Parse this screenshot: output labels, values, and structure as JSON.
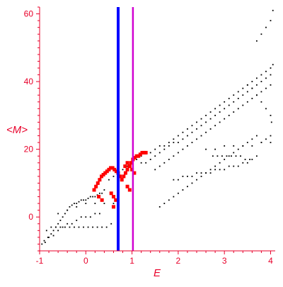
{
  "chart_data": {
    "type": "scatter",
    "xlabel": "E",
    "ylabel": "<M>",
    "xlim": [
      -1,
      4.1
    ],
    "ylim": [
      -10,
      62
    ],
    "x_ticks": [
      -1,
      0,
      1,
      2,
      3,
      4
    ],
    "x_tick_labels": [
      "-1",
      "0",
      "1",
      "2",
      "3",
      "4"
    ],
    "y_ticks": [
      0,
      20,
      40,
      60
    ],
    "y_tick_labels": [
      "0",
      "20",
      "40",
      "60"
    ],
    "grid": false,
    "axis_color": "#e8002a",
    "vertical_lines": [
      {
        "x": 0.7,
        "color": "#0000ff"
      },
      {
        "x": 1.02,
        "color": "#d000d0"
      }
    ],
    "series": [
      {
        "marker": "small-dot",
        "color": "#000000",
        "x": [
          -0.95,
          -0.88,
          -0.82,
          -0.75,
          -0.7,
          -0.65,
          -0.6,
          -0.55,
          -0.5,
          -0.45,
          -0.4,
          -0.35,
          -0.3,
          -0.25,
          -0.2,
          -0.15,
          -0.1,
          -0.05,
          0.0,
          0.05,
          0.1,
          0.15,
          0.2,
          0.25,
          0.3,
          0.35,
          0.4,
          -0.9,
          -0.8,
          -0.7,
          -0.6,
          -0.5,
          -0.4,
          -0.3,
          -0.2,
          -0.1,
          0.0,
          0.1,
          0.2,
          0.3,
          -0.85,
          -0.75,
          -0.65,
          -0.55,
          -0.45,
          -0.35,
          -0.25,
          -0.15,
          -0.05,
          0.05,
          0.15,
          0.25,
          0.35,
          0.45,
          0.55,
          -0.6,
          -0.4,
          -0.2,
          0.0,
          0.2,
          0.4,
          0.6,
          0.5,
          0.6,
          0.7,
          0.8,
          0.9,
          1.0,
          1.1,
          1.2,
          1.3,
          1.4,
          1.5,
          1.6,
          1.7,
          1.8,
          1.9,
          2.0,
          2.1,
          2.2,
          2.3,
          2.4,
          2.5,
          2.6,
          2.7,
          2.8,
          2.9,
          3.0,
          3.1,
          3.2,
          3.3,
          3.4,
          3.5,
          3.6,
          3.7,
          3.8,
          3.9,
          4.0,
          4.05,
          1.5,
          1.6,
          1.7,
          1.8,
          1.9,
          2.0,
          2.1,
          2.2,
          2.3,
          2.4,
          2.5,
          2.6,
          2.7,
          2.8,
          2.9,
          3.0,
          3.1,
          3.2,
          3.3,
          3.4,
          3.5,
          3.6,
          3.7,
          3.8,
          3.9,
          4.0,
          1.2,
          1.3,
          1.4,
          1.5,
          1.6,
          1.7,
          1.8,
          1.9,
          2.0,
          2.1,
          2.2,
          2.3,
          2.4,
          2.5,
          2.6,
          2.7,
          2.8,
          2.9,
          3.0,
          3.1,
          3.2,
          3.3,
          3.4,
          3.5,
          3.6,
          3.7,
          3.8,
          3.9,
          4.0,
          1.6,
          1.7,
          1.8,
          1.9,
          2.0,
          2.1,
          2.2,
          2.3,
          2.4,
          2.5,
          2.6,
          2.7,
          2.8,
          2.9,
          3.0,
          3.1,
          3.2,
          3.3,
          3.4,
          3.5,
          3.6,
          3.7,
          2.6,
          2.8,
          3.0,
          3.2,
          3.4,
          3.6,
          3.8,
          4.0,
          3.7,
          3.8,
          3.9,
          4.0,
          4.05,
          3.5,
          3.6,
          3.7,
          3.8,
          3.9,
          4.0,
          4.02,
          3.55,
          3.45,
          3.35,
          3.25,
          3.15,
          3.05,
          2.95,
          2.85,
          2.75,
          1.9,
          2.0,
          2.1,
          2.2,
          2.3,
          2.4,
          2.5,
          2.6,
          2.7,
          2.8,
          2.9,
          3.0,
          3.1,
          3.2,
          3.3,
          3.4,
          3.5,
          3.6,
          3.7,
          3.8,
          3.9,
          4.0
        ],
        "y": [
          -8,
          -7.5,
          -6,
          -5,
          -4,
          -3,
          -2,
          -1,
          0,
          1,
          2,
          3,
          3.5,
          4,
          4,
          4.5,
          5,
          5,
          5,
          5.5,
          6,
          6,
          6,
          6.5,
          7,
          7,
          8,
          -7,
          -6,
          -5.5,
          -4,
          -3,
          -2,
          -2,
          -1,
          0,
          0,
          0,
          1,
          1,
          -4,
          -3,
          -3,
          -3,
          -3,
          -3,
          -3,
          -3,
          -3,
          -3,
          -3,
          -3,
          -3,
          -3,
          -2,
          1,
          2,
          3,
          4,
          4,
          4,
          4,
          11,
          12,
          13,
          14,
          15,
          16,
          17,
          18,
          19,
          19,
          20,
          21,
          21,
          22,
          23,
          24,
          25,
          26,
          27,
          28,
          29,
          30,
          31,
          32,
          33,
          34,
          35,
          36,
          37,
          38,
          39,
          40,
          41,
          42,
          43,
          44,
          45,
          14,
          15,
          16,
          17,
          18,
          19,
          20,
          21,
          22,
          23,
          24,
          25,
          26,
          27,
          28,
          29,
          30,
          31,
          32,
          33,
          34,
          35,
          36,
          37,
          38,
          39,
          16,
          16,
          17,
          18,
          19,
          20,
          21,
          22,
          22,
          23,
          24,
          25,
          26,
          27,
          28,
          29,
          30,
          31,
          32,
          33,
          34,
          35,
          36,
          37,
          38,
          39,
          40,
          41,
          42,
          3,
          4,
          5,
          6,
          7,
          8,
          9,
          10,
          11,
          12,
          13,
          14,
          15,
          16,
          17,
          18,
          19,
          20,
          21,
          22,
          23,
          24,
          20,
          20,
          21,
          21,
          21,
          21,
          22,
          22,
          52,
          54,
          56,
          58,
          61,
          39,
          38,
          36,
          34,
          32,
          30,
          28,
          17,
          17,
          18,
          18,
          18,
          18,
          18,
          18,
          18,
          11,
          11,
          12,
          12,
          12,
          13,
          13,
          13,
          13,
          14,
          14,
          14,
          15,
          15,
          15,
          16,
          16,
          17,
          18,
          22,
          23,
          24
        ]
      },
      {
        "marker": "large-dot",
        "color": "#ff0000",
        "x": [
          0.18,
          0.22,
          0.26,
          0.3,
          0.34,
          0.38,
          0.42,
          0.46,
          0.5,
          0.54,
          0.58,
          0.62,
          0.66,
          0.7,
          0.74,
          0.78,
          0.82,
          0.86,
          0.9,
          0.94,
          0.98,
          1.02,
          1.06,
          1.1,
          1.14,
          1.18,
          1.22,
          1.26,
          1.3,
          0.85,
          0.9,
          0.95,
          1.0,
          1.05,
          0.55,
          0.6,
          0.65,
          0.6,
          0.9,
          0.95,
          0.28,
          0.35
        ],
        "y": [
          8,
          9,
          10,
          11,
          12,
          12.5,
          13,
          13.5,
          14,
          14.5,
          14.5,
          14,
          13.5,
          13,
          12,
          11,
          12,
          13,
          14,
          15,
          16,
          17,
          17.5,
          18,
          18,
          18.5,
          19,
          19,
          19,
          15,
          16,
          15,
          14,
          13,
          7,
          6,
          5,
          3,
          9,
          8,
          6,
          5
        ]
      }
    ]
  }
}
